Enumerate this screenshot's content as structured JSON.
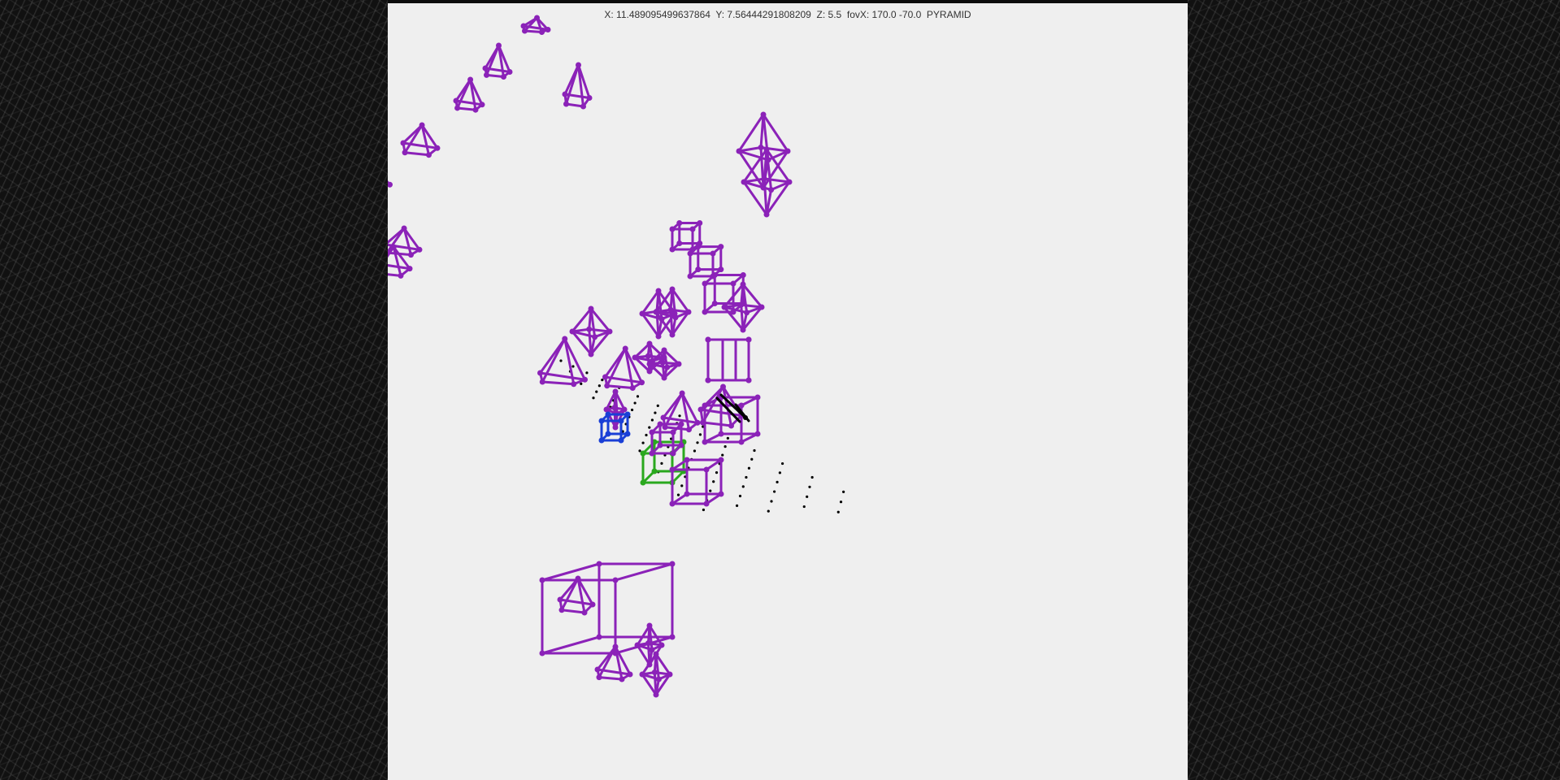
{
  "hud": {
    "text": "X: 11.489095499637864  Y: 7.56444291808209  Z: 5.5  fovX: 170.0 -70.0  PYRAMID"
  },
  "colors": {
    "background": "#efefef",
    "primary_shapes": "#8b22b8",
    "selected_shape": "#1a3fd6",
    "active_shape": "#2aa81e",
    "cursor": "#000000",
    "grid_points": "#000000"
  }
}
